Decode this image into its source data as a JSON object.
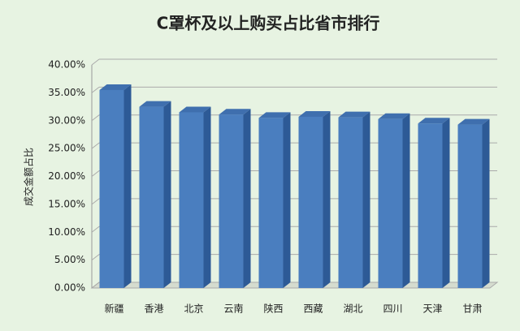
{
  "chart_data": {
    "type": "bar3d",
    "title": "C罩杯及以上购买占比省市排行",
    "y_label": "成交金额占比",
    "categories": [
      "新疆",
      "香港",
      "北京",
      "云南",
      "陕西",
      "西藏",
      "湖北",
      "四川",
      "天津",
      "甘肃"
    ],
    "values": [
      35.5,
      32.5,
      31.5,
      31.1,
      30.5,
      30.7,
      30.6,
      30.3,
      29.5,
      29.3
    ],
    "color": "#4a7ebf",
    "ylim": [
      0,
      40
    ],
    "yticks": [
      {
        "value": 0,
        "label": "0.00%"
      },
      {
        "value": 5,
        "label": "5.00%"
      },
      {
        "value": 10,
        "label": "10.00%"
      },
      {
        "value": 15,
        "label": "15.00%"
      },
      {
        "value": 20,
        "label": "20.00%"
      },
      {
        "value": 25,
        "label": "25.00%"
      },
      {
        "value": 30,
        "label": "30.00%"
      },
      {
        "value": 35,
        "label": "35.00%"
      },
      {
        "value": 40,
        "label": "40.00%"
      }
    ],
    "grid": true
  }
}
